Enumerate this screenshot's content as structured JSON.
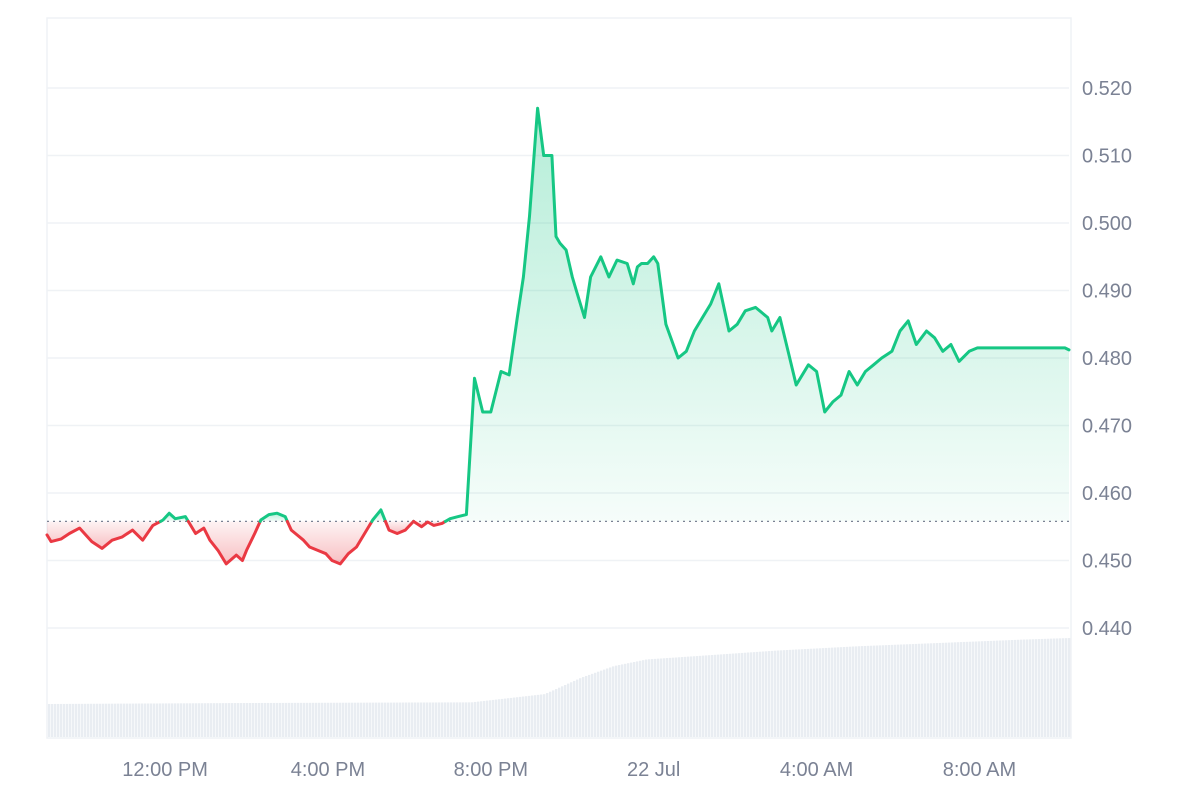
{
  "chart_data": {
    "type": "area",
    "title": "",
    "xlabel": "",
    "ylabel": "",
    "ylim": [
      0.44,
      0.52
    ],
    "y_ticks": [
      "0.520",
      "0.510",
      "0.500",
      "0.490",
      "0.480",
      "0.470",
      "0.460",
      "0.450",
      "0.440"
    ],
    "x_ticks": [
      "12:00 PM",
      "4:00 PM",
      "8:00 PM",
      "22 Jul",
      "4:00 AM",
      "8:00 AM"
    ],
    "baseline": 0.4558,
    "x_range_hours": [
      9.1,
      34.2
    ],
    "x_tick_hours": [
      12,
      16,
      20,
      24,
      28,
      32
    ],
    "grid": true,
    "colors": {
      "up": "#16c784",
      "down": "#ea3943",
      "grid": "#eff2f5",
      "axis_text": "#7b8294",
      "volume": "#e9edf2"
    },
    "series": [
      {
        "x": [
          9.1,
          9.2,
          9.45,
          9.65,
          9.9,
          10.2,
          10.45,
          10.7,
          10.95,
          11.2,
          11.45,
          11.7,
          11.95,
          12.1,
          12.25,
          12.5,
          12.75,
          12.95,
          13.1,
          13.3,
          13.5,
          13.75,
          13.9,
          14.0,
          14.2,
          14.35,
          14.55,
          14.75,
          14.95,
          15.1,
          15.2,
          15.4,
          15.55,
          15.75,
          15.95,
          16.1,
          16.3,
          16.5,
          16.7,
          16.9,
          17.1,
          17.3,
          17.5,
          17.7,
          17.9,
          18.1,
          18.3,
          18.45,
          18.6,
          18.8,
          19.0,
          19.2,
          19.4,
          19.6,
          19.8,
          20.0,
          20.25,
          20.45,
          20.65,
          20.8,
          20.95,
          21.15,
          21.3,
          21.5,
          21.6,
          21.7,
          21.85,
          22.0,
          22.1,
          22.3,
          22.45,
          22.7,
          22.9,
          23.1,
          23.35,
          23.5,
          23.6,
          23.7,
          23.85,
          24.0,
          24.1,
          24.3,
          24.6,
          24.8,
          25.0,
          25.2,
          25.4,
          25.6,
          25.85,
          26.05,
          26.25,
          26.5,
          26.8,
          26.9,
          27.1,
          27.3,
          27.5,
          27.8,
          28.0,
          28.2,
          28.4,
          28.6,
          28.8,
          29.0,
          29.2,
          29.4,
          29.6,
          29.85,
          30.05,
          30.25,
          30.45,
          30.7,
          30.9,
          31.1,
          31.3,
          31.5,
          31.75,
          31.95,
          32.15,
          32.3,
          32.5,
          32.7,
          32.9,
          33.1,
          33.3,
          33.5,
          33.7,
          33.9,
          34.1,
          34.2
        ],
        "values": [
          0.4538,
          0.4528,
          0.4532,
          0.454,
          0.4548,
          0.4528,
          0.4518,
          0.453,
          0.4535,
          0.4545,
          0.453,
          0.4552,
          0.456,
          0.457,
          0.4562,
          0.4565,
          0.454,
          0.4548,
          0.453,
          0.4515,
          0.4495,
          0.4508,
          0.45,
          0.4515,
          0.454,
          0.456,
          0.4568,
          0.457,
          0.4565,
          0.4545,
          0.454,
          0.453,
          0.452,
          0.4515,
          0.451,
          0.45,
          0.4495,
          0.451,
          0.452,
          0.454,
          0.456,
          0.4575,
          0.4545,
          0.454,
          0.4545,
          0.4558,
          0.455,
          0.4557,
          0.4552,
          0.4555,
          0.4562,
          0.4565,
          0.4568,
          0.477,
          0.472,
          0.472,
          0.478,
          0.4775,
          0.486,
          0.492,
          0.501,
          0.517,
          0.51,
          0.51,
          0.498,
          0.497,
          0.496,
          0.492,
          0.49,
          0.486,
          0.492,
          0.495,
          0.492,
          0.4945,
          0.494,
          0.491,
          0.4935,
          0.494,
          0.494,
          0.495,
          0.494,
          0.485,
          0.48,
          0.481,
          0.484,
          0.486,
          0.488,
          0.491,
          0.484,
          0.485,
          0.487,
          0.4875,
          0.486,
          0.484,
          0.486,
          0.481,
          0.476,
          0.479,
          0.478,
          0.472,
          0.4735,
          0.4745,
          0.478,
          0.476,
          0.478,
          0.479,
          0.48,
          0.481,
          0.484,
          0.4855,
          0.482,
          0.484,
          0.483,
          0.481,
          0.482,
          0.4795,
          0.481,
          0.4815,
          0.4815,
          0.4815,
          0.4815,
          0.4815,
          0.4815,
          0.4815,
          0.4815,
          0.4815,
          0.4815,
          0.4815,
          0.4815,
          0.4812
        ]
      }
    ],
    "volume": {
      "x": [
        9.1,
        14.0,
        19.5,
        21.3,
        22.2,
        23.0,
        23.8,
        25.0,
        27.0,
        29.0,
        31.0,
        33.0,
        34.2
      ],
      "values": [
        1.0,
        1.03,
        1.05,
        1.3,
        1.8,
        2.15,
        2.35,
        2.45,
        2.62,
        2.75,
        2.85,
        2.95,
        3.0
      ]
    }
  }
}
